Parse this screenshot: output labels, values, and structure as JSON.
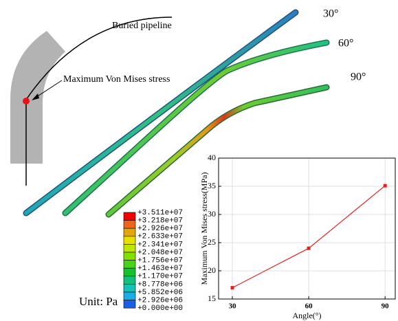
{
  "diagram": {
    "pipeline_label": "Buried pipeline",
    "stress_label": "Maximum Von Mises stress",
    "angle_labels": [
      "30°",
      "60°",
      "90°"
    ]
  },
  "contour_legend": {
    "labels": [
      "+3.511e+07",
      "+3.218e+07",
      "+2.926e+07",
      "+2.633e+07",
      "+2.341e+07",
      "+2.048e+07",
      "+1.756e+07",
      "+1.463e+07",
      "+1.170e+07",
      "+8.778e+06",
      "+5.852e+06",
      "+2.926e+06",
      "+0.000e+00"
    ],
    "colors": [
      "#f40000",
      "#f0641a",
      "#e3a60a",
      "#e8de00",
      "#bde600",
      "#84e000",
      "#46d41a",
      "#12c42a",
      "#12c07a",
      "#14c2b8",
      "#1aaee6",
      "#1a5ee6"
    ],
    "unit": "Unit: Pa"
  },
  "chart_data": {
    "type": "line",
    "x": [
      30,
      60,
      90
    ],
    "values": [
      17,
      24,
      35.1
    ],
    "color": "#e3211f",
    "xlabel": "Angle(°)",
    "ylabel": "Maximum Von Mises stress(MPa)",
    "xlim": [
      24.6,
      94
    ],
    "ylim": [
      15,
      40
    ],
    "xticks": [
      30,
      60,
      90
    ],
    "yticks": [
      15,
      20,
      25,
      30,
      35,
      40
    ],
    "grid": true
  }
}
